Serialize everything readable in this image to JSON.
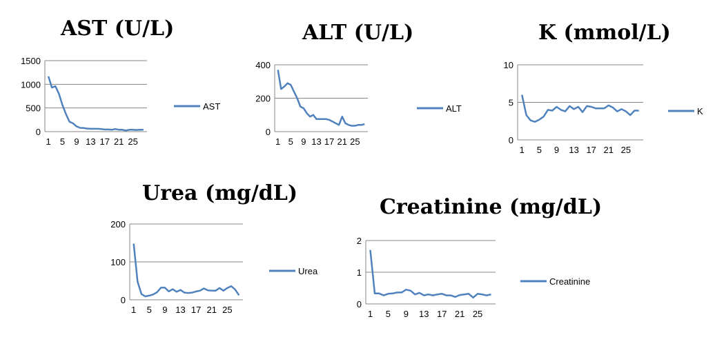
{
  "chart_data": [
    {
      "type": "line",
      "title": "AST (U/L)",
      "ylim": [
        0,
        1500
      ],
      "yticks": [
        "0",
        "500",
        "1000",
        "1500"
      ],
      "xticks": [
        "1",
        "5",
        "9",
        "13",
        "17",
        "21",
        "25"
      ],
      "grid": true,
      "legend": "right",
      "color": "#4F81BD",
      "series": [
        {
          "name": "AST",
          "x": [
            1,
            2,
            3,
            4,
            5,
            6,
            7,
            8,
            9,
            10,
            11,
            12,
            13,
            14,
            15,
            16,
            17,
            18,
            19,
            20,
            21,
            22,
            23,
            24,
            25,
            26,
            27,
            28
          ],
          "values": [
            1170,
            930,
            960,
            800,
            560,
            370,
            210,
            175,
            110,
            80,
            75,
            65,
            60,
            60,
            60,
            55,
            45,
            45,
            40,
            55,
            40,
            40,
            25,
            40,
            40,
            35,
            40,
            40
          ]
        }
      ]
    },
    {
      "type": "line",
      "title": "ALT (U/L)",
      "ylim": [
        0,
        400
      ],
      "yticks": [
        "0",
        "200",
        "400"
      ],
      "xticks": [
        "1",
        "5",
        "9",
        "13",
        "17",
        "21",
        "25"
      ],
      "grid": true,
      "legend": "right",
      "color": "#4F81BD",
      "series": [
        {
          "name": "ALT",
          "x": [
            1,
            2,
            3,
            4,
            5,
            6,
            7,
            8,
            9,
            10,
            11,
            12,
            13,
            14,
            15,
            16,
            17,
            18,
            19,
            20,
            21,
            22,
            23,
            24,
            25,
            26,
            27,
            28
          ],
          "values": [
            370,
            255,
            270,
            290,
            280,
            240,
            200,
            150,
            140,
            110,
            90,
            100,
            75,
            75,
            75,
            75,
            70,
            60,
            50,
            40,
            90,
            50,
            40,
            35,
            35,
            40,
            40,
            45
          ]
        }
      ]
    },
    {
      "type": "line",
      "title": "K (mmol/L)",
      "ylim": [
        0,
        10
      ],
      "yticks": [
        "0",
        "5",
        "10"
      ],
      "xticks": [
        "1",
        "5",
        "9",
        "13",
        "17",
        "21",
        "25"
      ],
      "grid": true,
      "legend": "right",
      "color": "#4F81BD",
      "series": [
        {
          "name": "K",
          "x": [
            1,
            2,
            3,
            4,
            5,
            6,
            7,
            8,
            9,
            10,
            11,
            12,
            13,
            14,
            15,
            16,
            17,
            18,
            19,
            20,
            21,
            22,
            23,
            24,
            25,
            26,
            27,
            28
          ],
          "values": [
            6.0,
            3.3,
            2.6,
            2.4,
            2.7,
            3.1,
            4.0,
            3.9,
            4.4,
            4.0,
            3.8,
            4.5,
            4.1,
            4.4,
            3.7,
            4.5,
            4.4,
            4.2,
            4.2,
            4.2,
            4.6,
            4.3,
            3.8,
            4.1,
            3.8,
            3.3,
            3.9,
            3.9
          ]
        }
      ]
    },
    {
      "type": "line",
      "title": "Urea (mg/dL)",
      "ylim": [
        0,
        200
      ],
      "yticks": [
        "0",
        "100",
        "200"
      ],
      "xticks": [
        "1",
        "5",
        "9",
        "13",
        "17",
        "21",
        "25"
      ],
      "grid": true,
      "legend": "right",
      "color": "#4F81BD",
      "series": [
        {
          "name": "Urea",
          "x": [
            1,
            2,
            3,
            4,
            5,
            6,
            7,
            8,
            9,
            10,
            11,
            12,
            13,
            14,
            15,
            16,
            17,
            18,
            19,
            20,
            21,
            22,
            23,
            24,
            25,
            26,
            27,
            28
          ],
          "values": [
            148,
            48,
            15,
            9,
            11,
            14,
            20,
            32,
            32,
            22,
            28,
            21,
            26,
            19,
            18,
            19,
            22,
            24,
            30,
            25,
            24,
            24,
            31,
            24,
            31,
            36,
            27,
            12
          ]
        }
      ]
    },
    {
      "type": "line",
      "title": "Creatinine (mg/dL)",
      "ylim": [
        0,
        2
      ],
      "yticks": [
        "0",
        "1",
        "2"
      ],
      "xticks": [
        "1",
        "5",
        "9",
        "13",
        "17",
        "21",
        "25"
      ],
      "grid": true,
      "legend": "right",
      "color": "#4F81BD",
      "series": [
        {
          "name": "Creatinine",
          "x": [
            1,
            2,
            3,
            4,
            5,
            6,
            7,
            8,
            9,
            10,
            11,
            12,
            13,
            14,
            15,
            16,
            17,
            18,
            19,
            20,
            21,
            22,
            23,
            24,
            25,
            26,
            27,
            28
          ],
          "values": [
            1.7,
            0.33,
            0.33,
            0.27,
            0.32,
            0.33,
            0.36,
            0.36,
            0.45,
            0.42,
            0.3,
            0.35,
            0.27,
            0.3,
            0.27,
            0.3,
            0.32,
            0.27,
            0.27,
            0.22,
            0.28,
            0.3,
            0.32,
            0.2,
            0.32,
            0.3,
            0.27,
            0.3
          ]
        }
      ]
    }
  ]
}
